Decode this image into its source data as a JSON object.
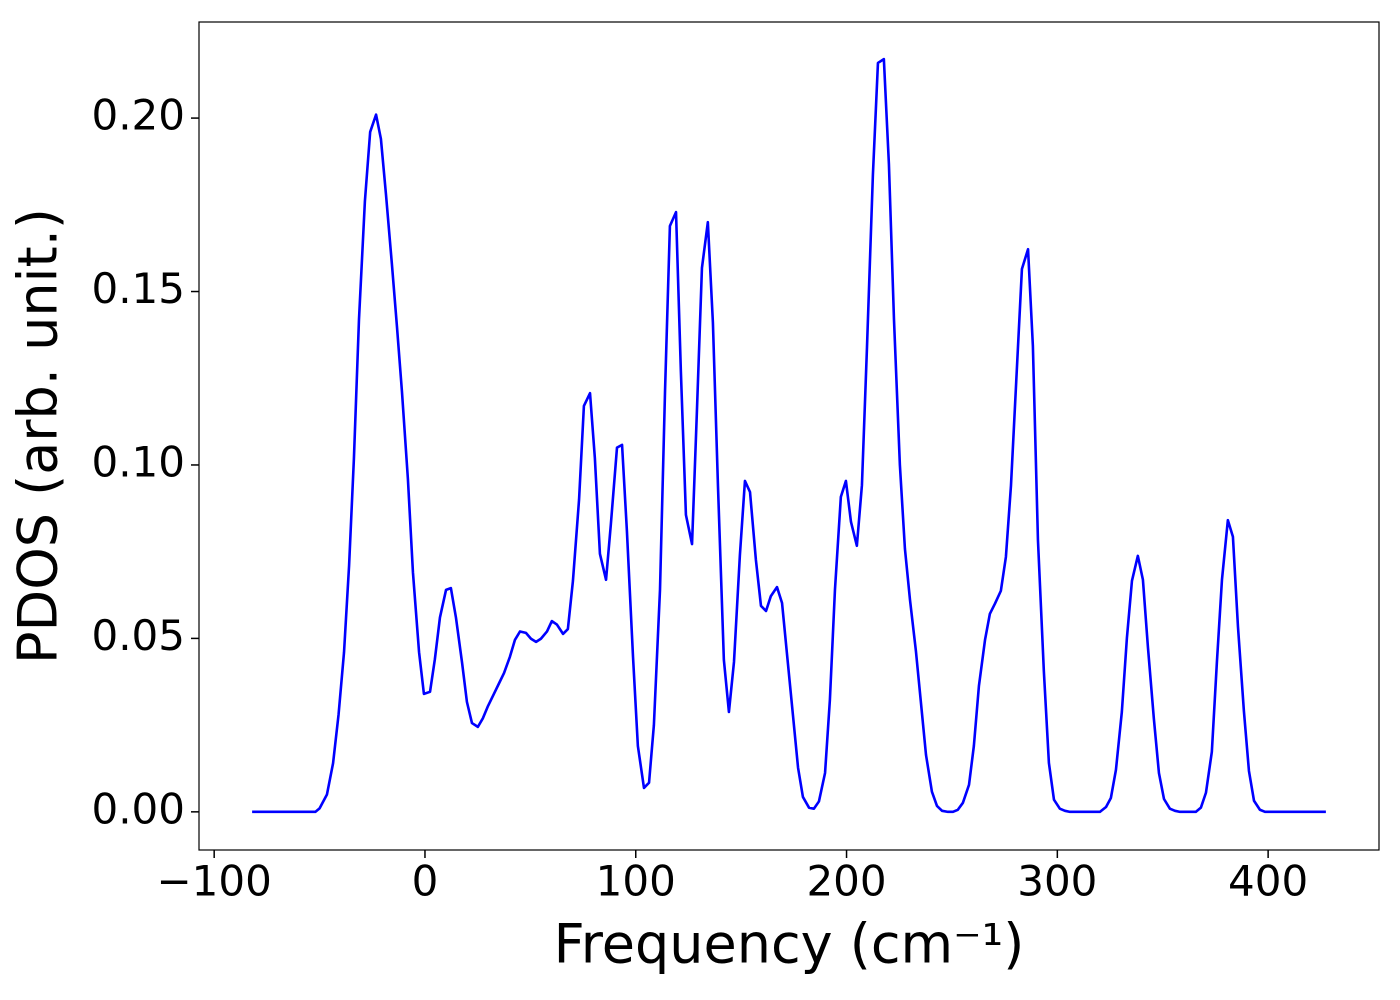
{
  "chart_data": {
    "type": "line",
    "xlabel": "Frequency (cm⁻¹)",
    "ylabel": "PDOS (arb. unit.)",
    "xlim": [
      -107.2,
      452.6
    ],
    "ylim": [
      -0.011,
      0.2277
    ],
    "xticks": [
      {
        "value": -100,
        "label": "−100"
      },
      0,
      100,
      200,
      300,
      400
    ],
    "yticks": [
      {
        "value": 0,
        "label": "0.00"
      },
      {
        "value": 0.05,
        "label": "0.05"
      },
      {
        "value": 0.1,
        "label": "0.10"
      },
      {
        "value": 0.15,
        "label": "0.15"
      },
      {
        "value": 0.2,
        "label": "0.20"
      }
    ],
    "series": [
      {
        "color": "#0000ff",
        "x": [
          -82,
          -52,
          -50,
          -46.5,
          -43.6,
          -41,
          -38.4,
          -36,
          -33.7,
          -31.3,
          -28.5,
          -26,
          -23.2,
          -20.9,
          -18.5,
          -15.7,
          -13.3,
          -10.9,
          -8.1,
          -5.7,
          -2.8,
          -0.5,
          2.4,
          4.7,
          7.1,
          10,
          12.3,
          14.7,
          17.6,
          19.9,
          22.3,
          25.1,
          27.5,
          29.9,
          32.7,
          35.1,
          37.5,
          40.3,
          42.7,
          45.1,
          47.9,
          50.3,
          52.7,
          55,
          57.9,
          60.2,
          62.6,
          65.5,
          67.8,
          70.2,
          73.1,
          75.4,
          78.3,
          80.6,
          83,
          85.9,
          88.2,
          91.1,
          93.5,
          95.8,
          98.7,
          101,
          103.9,
          106.3,
          108.6,
          111.5,
          113.9,
          116.2,
          119.1,
          121.4,
          123.8,
          126.7,
          129,
          131.4,
          134.2,
          136.6,
          139,
          141.8,
          144.2,
          146.6,
          149.4,
          151.8,
          154.2,
          157,
          159.4,
          161.8,
          164.1,
          167,
          169.4,
          171.7,
          174.6,
          177,
          179.3,
          182.2,
          184.5,
          186.9,
          189.8,
          192.1,
          194.5,
          197.3,
          199.7,
          202.1,
          204.9,
          207.3,
          209.7,
          212.5,
          214.9,
          217.7,
          220.1,
          222.5,
          225.3,
          227.7,
          230.1,
          232.9,
          235.3,
          237.7,
          240.5,
          242.9,
          245.3,
          248.1,
          250.5,
          252.8,
          255.2,
          258.1,
          260.4,
          262.8,
          265.7,
          268,
          270.4,
          273.2,
          275.6,
          278,
          280.8,
          283.2,
          286.1,
          288.4,
          290.8,
          293.6,
          296,
          298.4,
          301.2,
          303.6,
          306,
          320.2,
          323.1,
          325.4,
          327.8,
          330.6,
          333,
          335.4,
          338.2,
          340.6,
          343,
          345.8,
          348.2,
          350.6,
          353.4,
          355.8,
          358.2,
          365.7,
          368.1,
          370.5,
          373.3,
          375.7,
          378.1,
          380.9,
          383.3,
          385.7,
          388.5,
          390.9,
          393.3,
          396.1,
          398.5,
          427.4
        ],
        "values": [
          0,
          0,
          0.001,
          0.005,
          0.014,
          0.028,
          0.046,
          0.071,
          0.102,
          0.142,
          0.176,
          0.196,
          0.201,
          0.194,
          0.178,
          0.158,
          0.14,
          0.121,
          0.096,
          0.069,
          0.046,
          0.034,
          0.0346,
          0.044,
          0.056,
          0.064,
          0.0645,
          0.056,
          0.043,
          0.0317,
          0.0256,
          0.0245,
          0.027,
          0.0305,
          0.034,
          0.037,
          0.04,
          0.0447,
          0.0496,
          0.052,
          0.0516,
          0.0499,
          0.049,
          0.0499,
          0.052,
          0.055,
          0.054,
          0.0513,
          0.0527,
          0.0666,
          0.09,
          0.117,
          0.1207,
          0.102,
          0.0744,
          0.0669,
          0.083,
          0.105,
          0.1058,
          0.081,
          0.0447,
          0.019,
          0.0069,
          0.0084,
          0.025,
          0.064,
          0.1216,
          0.1689,
          0.1729,
          0.127,
          0.0856,
          0.0772,
          0.1153,
          0.1568,
          0.17,
          0.141,
          0.094,
          0.0438,
          0.0288,
          0.0432,
          0.074,
          0.0954,
          0.0922,
          0.0726,
          0.0594,
          0.0579,
          0.0622,
          0.0648,
          0.0602,
          0.0458,
          0.0277,
          0.0127,
          0.0043,
          0.0012,
          0.0009,
          0.003,
          0.0112,
          0.0323,
          0.064,
          0.0908,
          0.0954,
          0.0836,
          0.0767,
          0.0942,
          0.134,
          0.1836,
          0.2159,
          0.217,
          0.1867,
          0.142,
          0.1,
          0.0758,
          0.0611,
          0.0464,
          0.0314,
          0.0164,
          0.0058,
          0.0017,
          0.0003,
          0,
          0,
          0.0006,
          0.0026,
          0.0078,
          0.019,
          0.0363,
          0.0496,
          0.0571,
          0.06,
          0.0637,
          0.0735,
          0.094,
          0.1277,
          0.1565,
          0.1622,
          0.1343,
          0.0784,
          0.0406,
          0.0141,
          0.0035,
          0.0009,
          0.0003,
          0,
          0,
          0.0014,
          0.004,
          0.0121,
          0.0288,
          0.0501,
          0.0666,
          0.0738,
          0.0669,
          0.0473,
          0.0268,
          0.0112,
          0.0037,
          0.0009,
          0.0003,
          0,
          0,
          0.0012,
          0.0055,
          0.0173,
          0.0432,
          0.0669,
          0.0841,
          0.0793,
          0.0533,
          0.0291,
          0.0118,
          0.0032,
          0.0006,
          0,
          0
        ]
      }
    ]
  }
}
